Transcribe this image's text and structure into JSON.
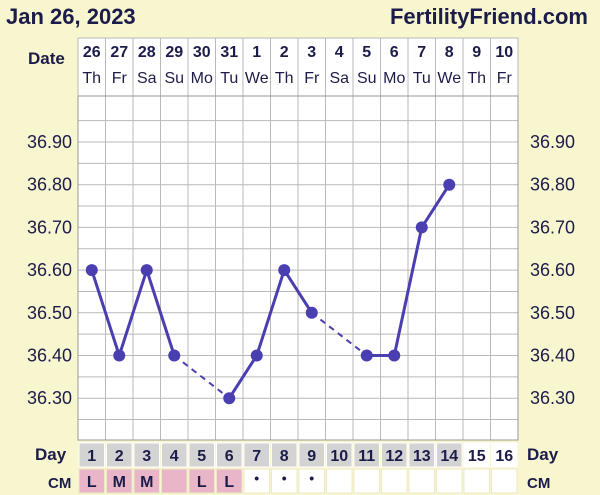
{
  "header": {
    "date": "Jan 26, 2023",
    "site": "FertilityFriend.com"
  },
  "labels": {
    "date_row": "Date",
    "day_row": "Day",
    "cm_row": "CM"
  },
  "chart_data": {
    "type": "line",
    "title": "",
    "dates": [
      "26",
      "27",
      "28",
      "29",
      "30",
      "31",
      "1",
      "2",
      "3",
      "4",
      "5",
      "6",
      "7",
      "8",
      "9",
      "10"
    ],
    "weekdays": [
      "Th",
      "Fr",
      "Sa",
      "Su",
      "Mo",
      "Tu",
      "We",
      "Th",
      "Fr",
      "Sa",
      "Su",
      "Mo",
      "Tu",
      "We",
      "Th",
      "Fr"
    ],
    "cycle_days": [
      1,
      2,
      3,
      4,
      5,
      6,
      7,
      8,
      9,
      10,
      11,
      12,
      13,
      14,
      15,
      16
    ],
    "y_ticks": [
      "36.90",
      "36.80",
      "36.70",
      "36.60",
      "36.50",
      "36.40",
      "36.30"
    ],
    "ylim": [
      36.2,
      37.0
    ],
    "series": [
      {
        "values": [
          36.6,
          36.4,
          36.6,
          36.4,
          null,
          36.3,
          36.4,
          36.6,
          36.5,
          null,
          36.4,
          36.4,
          36.7,
          36.8,
          null,
          null
        ]
      }
    ],
    "cm": [
      "L",
      "M",
      "M",
      "",
      "L",
      "L",
      "•",
      "•",
      "•",
      "",
      "",
      "",
      "",
      "",
      "",
      ""
    ],
    "cm_highlight_days": [
      1,
      2,
      3,
      4,
      5,
      6
    ],
    "highlight_day_cells": [
      1,
      2,
      3,
      4,
      5,
      6,
      7,
      8,
      9,
      10,
      11,
      12,
      13,
      14
    ],
    "colors": {
      "line": "#4a3fb0",
      "grid": "#b9b9b9",
      "text": "#1c1c4a",
      "cm_fill": "#e8b6c8",
      "day_fill": "#d3d3d3",
      "plot_bg": "#ffffff"
    }
  }
}
